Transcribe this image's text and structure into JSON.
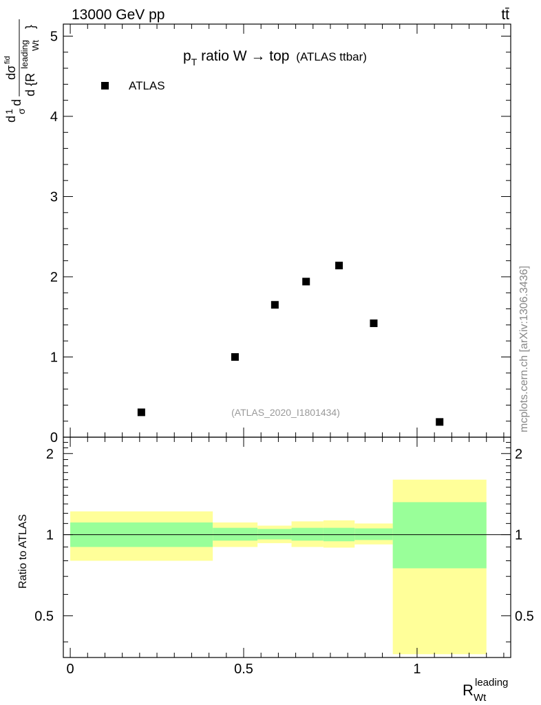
{
  "header": {
    "energy_label": "13000 GeV pp",
    "process_label": "tt̄"
  },
  "watermark": "mcplots.cern.ch [arXiv:1306.3436]",
  "chart_data": [
    {
      "type": "scatter",
      "title": "p",
      "title_sub": "T",
      "title_rest": " ratio W → top",
      "title_small": "(ATLAS ttbar)",
      "ylabel_parts": [
        "d",
        "1",
        "σ",
        "d",
        "dσ",
        "fid",
        "d {R",
        "leading",
        "Wt",
        "}"
      ],
      "analysis_label": "(ATLAS_2020_I1801434)",
      "legend": [
        {
          "name": "ATLAS",
          "marker": "square",
          "color": "#000000"
        }
      ],
      "xlim": [
        -0.02,
        1.27
      ],
      "ylim": [
        0,
        5.15
      ],
      "yticks": [
        0,
        1,
        2,
        3,
        4,
        5
      ],
      "series": [
        {
          "name": "ATLAS",
          "x": [
            0.205,
            0.475,
            0.59,
            0.68,
            0.775,
            0.875,
            1.065
          ],
          "y": [
            0.31,
            1.0,
            1.65,
            1.94,
            2.14,
            1.42,
            0.19
          ]
        }
      ]
    },
    {
      "type": "area",
      "ylabel": "Ratio to ATLAS",
      "xlabel": "R",
      "xlabel_sup": "leading",
      "xlabel_sub": "Wt",
      "xlim": [
        -0.02,
        1.27
      ],
      "ylim": [
        0.35,
        2.3
      ],
      "yscale": "log",
      "yticks": [
        0.5,
        1,
        2
      ],
      "ytick_labels": [
        "0.5",
        "1",
        "2"
      ],
      "xticks": [
        0,
        0.5,
        1
      ],
      "xtick_labels": [
        "0",
        "0.5",
        "1"
      ],
      "reference_line": 1,
      "bands": [
        {
          "x0": 0.0,
          "x1": 0.411,
          "inner_lo": 0.9,
          "inner_hi": 1.11,
          "outer_lo": 0.8,
          "outer_hi": 1.22
        },
        {
          "x0": 0.411,
          "x1": 0.54,
          "inner_lo": 0.95,
          "inner_hi": 1.06,
          "outer_lo": 0.9,
          "outer_hi": 1.11
        },
        {
          "x0": 0.54,
          "x1": 0.638,
          "inner_lo": 0.96,
          "inner_hi": 1.05,
          "outer_lo": 0.93,
          "outer_hi": 1.08
        },
        {
          "x0": 0.638,
          "x1": 0.73,
          "inner_lo": 0.95,
          "inner_hi": 1.06,
          "outer_lo": 0.9,
          "outer_hi": 1.12
        },
        {
          "x0": 0.73,
          "x1": 0.82,
          "inner_lo": 0.945,
          "inner_hi": 1.06,
          "outer_lo": 0.895,
          "outer_hi": 1.13
        },
        {
          "x0": 0.82,
          "x1": 0.93,
          "inner_lo": 0.955,
          "inner_hi": 1.055,
          "outer_lo": 0.92,
          "outer_hi": 1.1
        },
        {
          "x0": 0.93,
          "x1": 1.2,
          "inner_lo": 0.75,
          "inner_hi": 1.32,
          "outer_lo": 0.36,
          "outer_hi": 1.6
        }
      ],
      "colors": {
        "inner": "#99ff99",
        "outer": "#ffff99"
      }
    }
  ]
}
